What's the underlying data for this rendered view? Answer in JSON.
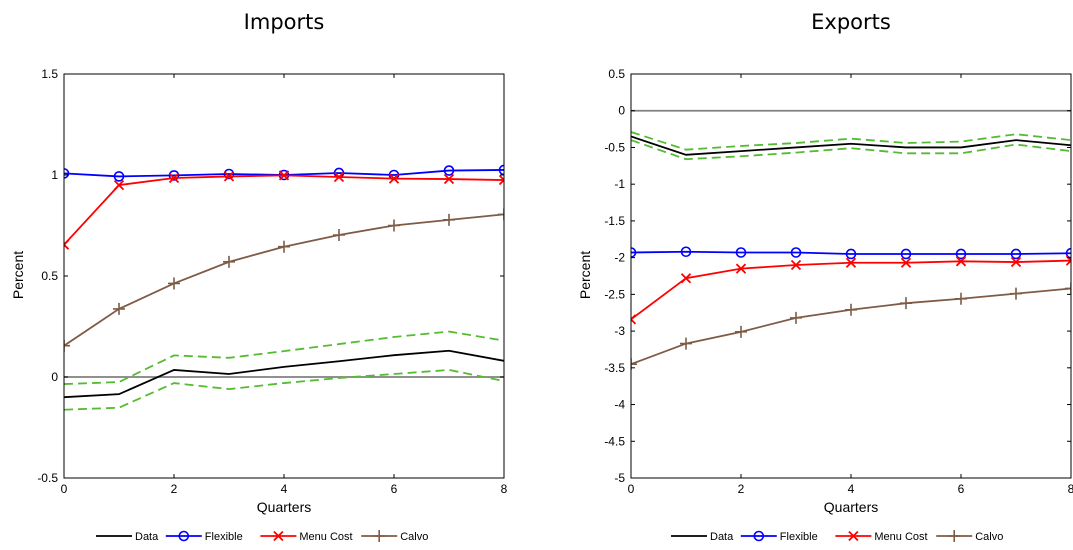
{
  "chart_data": [
    {
      "type": "line",
      "title": "Imports",
      "xlabel": "Quarters",
      "ylabel": "Percent",
      "xlim": [
        0,
        8
      ],
      "ylim": [
        -0.5,
        1.5
      ],
      "xticks": [
        0,
        2,
        4,
        6,
        8
      ],
      "yticks": [
        -0.5,
        0,
        0.5,
        1,
        1.5
      ],
      "ytick_labels": [
        "-0.5",
        "0",
        "0.5",
        "1",
        "1.5"
      ],
      "zero_line": 0,
      "grid": false,
      "legend_placement": "bottom",
      "x": [
        0,
        1,
        2,
        3,
        4,
        5,
        6,
        7,
        8
      ],
      "series": [
        {
          "name": "Data",
          "color": "#000000",
          "marker": "none",
          "values": [
            -0.1,
            -0.085,
            0.035,
            0.015,
            0.05,
            0.078,
            0.108,
            0.13,
            0.08
          ]
        },
        {
          "name": "Flexible",
          "color": "#0000ff",
          "marker": "circle",
          "values": [
            1.008,
            0.993,
            0.998,
            1.005,
            1.0,
            1.01,
            1.0,
            1.022,
            1.025
          ]
        },
        {
          "name": "Menu Cost",
          "color": "#ff0000",
          "marker": "x",
          "values": [
            0.655,
            0.95,
            0.985,
            0.993,
            0.998,
            0.99,
            0.982,
            0.98,
            0.975
          ]
        },
        {
          "name": "Calvo",
          "color": "#7f5b45",
          "marker": "plus",
          "values": [
            0.155,
            0.337,
            0.463,
            0.57,
            0.645,
            0.703,
            0.75,
            0.778,
            0.805
          ]
        }
      ],
      "bands": [
        {
          "color": "#55bb33",
          "values": [
            -0.035,
            -0.025,
            0.107,
            0.095,
            0.128,
            0.163,
            0.198,
            0.225,
            0.18
          ]
        },
        {
          "color": "#55bb33",
          "values": [
            -0.162,
            -0.152,
            -0.03,
            -0.06,
            -0.03,
            -0.005,
            0.015,
            0.035,
            -0.02
          ]
        }
      ]
    },
    {
      "type": "line",
      "title": "Exports",
      "xlabel": "Quarters",
      "ylabel": "Percent",
      "xlim": [
        0,
        8
      ],
      "ylim": [
        -5,
        0.5
      ],
      "xticks": [
        0,
        2,
        4,
        6,
        8
      ],
      "yticks": [
        -5,
        -4.5,
        -4,
        -3.5,
        -3,
        -2.5,
        -2,
        -1.5,
        -1,
        -0.5,
        0,
        0.5
      ],
      "ytick_labels": [
        "-5",
        "-4.5",
        "-4",
        "-3.5",
        "-3",
        "-2.5",
        "-2",
        "-1.5",
        "-1",
        "-0.5",
        "0",
        "0.5"
      ],
      "zero_line": 0,
      "grid": false,
      "legend_placement": "bottom",
      "x": [
        0,
        1,
        2,
        3,
        4,
        5,
        6,
        7,
        8
      ],
      "series": [
        {
          "name": "Data",
          "color": "#000000",
          "marker": "none",
          "values": [
            -0.35,
            -0.6,
            -0.55,
            -0.5,
            -0.45,
            -0.5,
            -0.5,
            -0.4,
            -0.47
          ]
        },
        {
          "name": "Flexible",
          "color": "#0000ff",
          "marker": "circle",
          "values": [
            -1.93,
            -1.92,
            -1.93,
            -1.93,
            -1.95,
            -1.95,
            -1.95,
            -1.95,
            -1.94
          ]
        },
        {
          "name": "Menu Cost",
          "color": "#ff0000",
          "marker": "x",
          "values": [
            -2.84,
            -2.28,
            -2.15,
            -2.1,
            -2.07,
            -2.07,
            -2.05,
            -2.06,
            -2.04
          ]
        },
        {
          "name": "Calvo",
          "color": "#7f5b45",
          "marker": "plus",
          "values": [
            -3.45,
            -3.17,
            -3.01,
            -2.82,
            -2.71,
            -2.62,
            -2.56,
            -2.49,
            -2.42
          ]
        }
      ],
      "bands": [
        {
          "color": "#55bb33",
          "values": [
            -0.29,
            -0.53,
            -0.48,
            -0.44,
            -0.38,
            -0.44,
            -0.42,
            -0.32,
            -0.4
          ]
        },
        {
          "color": "#55bb33",
          "values": [
            -0.4,
            -0.66,
            -0.62,
            -0.57,
            -0.51,
            -0.58,
            -0.58,
            -0.46,
            -0.55
          ]
        }
      ]
    }
  ]
}
